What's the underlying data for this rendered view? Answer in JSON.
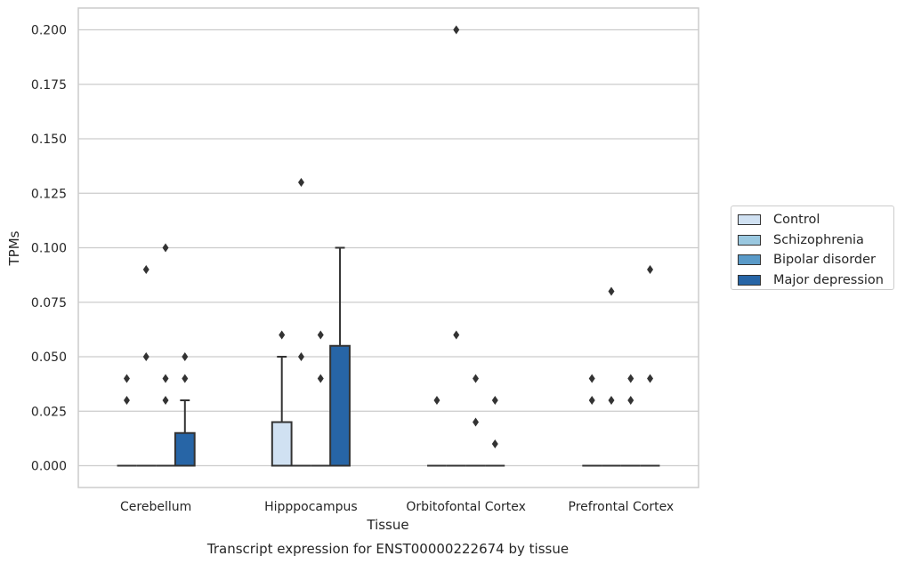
{
  "chart_data": {
    "type": "box",
    "title": "Transcript expression for ENST00000222674 by tissue",
    "xlabel": "Tissue",
    "ylabel": "TPMs",
    "ylim": [
      -0.01,
      0.21
    ],
    "yticks": [
      0.0,
      0.025,
      0.05,
      0.075,
      0.1,
      0.125,
      0.15,
      0.175,
      0.2
    ],
    "ytick_labels": [
      "0.000",
      "0.025",
      "0.050",
      "0.075",
      "0.100",
      "0.125",
      "0.150",
      "0.175",
      "0.200"
    ],
    "categories": [
      "Cerebellum",
      "Hipppocampus",
      "Orbitofontal Cortex",
      "Prefrontal Cortex"
    ],
    "grid": "horizontal",
    "legend_position": "right",
    "series": [
      {
        "name": "Control",
        "color": "#d0e1f2",
        "boxes": [
          {
            "q1": 0,
            "median": 0,
            "q3": 0,
            "whisker_low": 0,
            "whisker_high": 0,
            "outliers": [
              0.03,
              0.04
            ]
          },
          {
            "q1": 0,
            "median": 0,
            "q3": 0.02,
            "whisker_low": 0,
            "whisker_high": 0.05,
            "outliers": [
              0.06
            ]
          },
          {
            "q1": 0,
            "median": 0,
            "q3": 0,
            "whisker_low": 0,
            "whisker_high": 0,
            "outliers": [
              0.03
            ]
          },
          {
            "q1": 0,
            "median": 0,
            "q3": 0,
            "whisker_low": 0,
            "whisker_high": 0,
            "outliers": [
              0.03,
              0.04
            ]
          }
        ]
      },
      {
        "name": "Schizophrenia",
        "color": "#9ac8e0",
        "boxes": [
          {
            "q1": 0,
            "median": 0,
            "q3": 0,
            "whisker_low": 0,
            "whisker_high": 0,
            "outliers": [
              0.05,
              0.09
            ]
          },
          {
            "q1": 0,
            "median": 0,
            "q3": 0,
            "whisker_low": 0,
            "whisker_high": 0,
            "outliers": [
              0.05,
              0.13
            ]
          },
          {
            "q1": 0,
            "median": 0,
            "q3": 0,
            "whisker_low": 0,
            "whisker_high": 0,
            "outliers": [
              0.06,
              0.2
            ]
          },
          {
            "q1": 0,
            "median": 0,
            "q3": 0,
            "whisker_low": 0,
            "whisker_high": 0,
            "outliers": [
              0.03,
              0.08
            ]
          }
        ]
      },
      {
        "name": "Bipolar disorder",
        "color": "#5a9ac8",
        "boxes": [
          {
            "q1": 0,
            "median": 0,
            "q3": 0,
            "whisker_low": 0,
            "whisker_high": 0,
            "outliers": [
              0.03,
              0.04,
              0.1
            ]
          },
          {
            "q1": 0,
            "median": 0,
            "q3": 0,
            "whisker_low": 0,
            "whisker_high": 0,
            "outliers": [
              0.04,
              0.06
            ]
          },
          {
            "q1": 0,
            "median": 0,
            "q3": 0,
            "whisker_low": 0,
            "whisker_high": 0,
            "outliers": [
              0.02,
              0.04
            ]
          },
          {
            "q1": 0,
            "median": 0,
            "q3": 0,
            "whisker_low": 0,
            "whisker_high": 0,
            "outliers": [
              0.03,
              0.04
            ]
          }
        ]
      },
      {
        "name": "Major depression",
        "color": "#2765a6",
        "boxes": [
          {
            "q1": 0,
            "median": 0,
            "q3": 0.015,
            "whisker_low": 0,
            "whisker_high": 0.03,
            "outliers": [
              0.04,
              0.05
            ]
          },
          {
            "q1": 0,
            "median": 0,
            "q3": 0.055,
            "whisker_low": 0,
            "whisker_high": 0.1,
            "outliers": []
          },
          {
            "q1": 0,
            "median": 0,
            "q3": 0,
            "whisker_low": 0,
            "whisker_high": 0,
            "outliers": [
              0.01,
              0.03
            ]
          },
          {
            "q1": 0,
            "median": 0,
            "q3": 0,
            "whisker_low": 0,
            "whisker_high": 0,
            "outliers": [
              0.04,
              0.09
            ]
          }
        ]
      }
    ]
  }
}
